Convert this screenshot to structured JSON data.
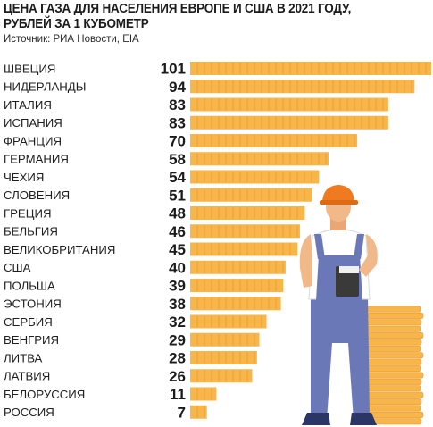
{
  "header": {
    "title_line1": "ЦЕНА ГАЗА ДЛЯ НАСЕЛЕНИЯ ЕВРОПЕ И США В 2021 ГОДУ,",
    "title_line2": "РУБЛЕЙ ЗА 1 КУБОМЕТР",
    "source": "Источник: РИА Новости, EIA"
  },
  "colors": {
    "bar": "#f7b54a",
    "bar_dark": "#e89a2c",
    "overalls": "#6a78b8",
    "skin": "#f1b98a",
    "helmet": "#f07a1f",
    "shirt": "#ffffff"
  },
  "chart_data": {
    "type": "bar",
    "orientation": "horizontal",
    "title": "ЦЕНА ГАЗА ДЛЯ НАСЕЛЕНИЯ ЕВРОПЕ И США В 2021 ГОДУ, РУБЛЕЙ ЗА 1 КУБОМЕТР",
    "categories": [
      "ШВЕЦИЯ",
      "НИДЕРЛАНДЫ",
      "ИТАЛИЯ",
      "ИСПАНИЯ",
      "ФРАНЦИЯ",
      "ГЕРМАНИЯ",
      "ЧЕХИЯ",
      "СЛОВЕНИЯ",
      "ГРЕЦИЯ",
      "БЕЛЬГИЯ",
      "ВЕЛИКОБРИТАНИЯ",
      "США",
      "ПОЛЬША",
      "ЭСТОНИЯ",
      "СЕРБИЯ",
      "ВЕНГРИЯ",
      "ЛИТВА",
      "ЛАТВИЯ",
      "БЕЛОРУССИЯ",
      "РОССИЯ"
    ],
    "values": [
      101,
      94,
      83,
      83,
      70,
      58,
      54,
      51,
      48,
      46,
      45,
      40,
      39,
      38,
      32,
      29,
      28,
      26,
      11,
      7
    ],
    "xlim": [
      0,
      101
    ],
    "grid": false,
    "legend": "none"
  }
}
